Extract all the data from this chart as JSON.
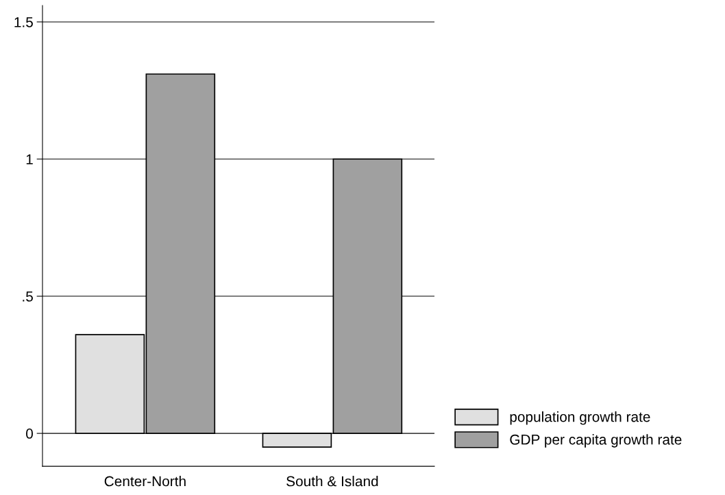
{
  "chart_data": {
    "type": "bar",
    "categories": [
      "Center-North",
      "South & Island"
    ],
    "series": [
      {
        "name": "population growth rate",
        "color": "#e0e0e0",
        "values": [
          0.36,
          -0.05
        ]
      },
      {
        "name": "GDP per capita growth rate",
        "color": "#a0a0a0",
        "values": [
          1.31,
          1.0
        ]
      }
    ],
    "ylim": [
      -0.12,
      1.56
    ],
    "yticks": [
      {
        "value": 0,
        "label": "0"
      },
      {
        "value": 0.5,
        "label": ".5"
      },
      {
        "value": 1,
        "label": "1"
      },
      {
        "value": 1.5,
        "label": "1.5"
      }
    ],
    "grid": "y",
    "legend": "bottom right"
  }
}
